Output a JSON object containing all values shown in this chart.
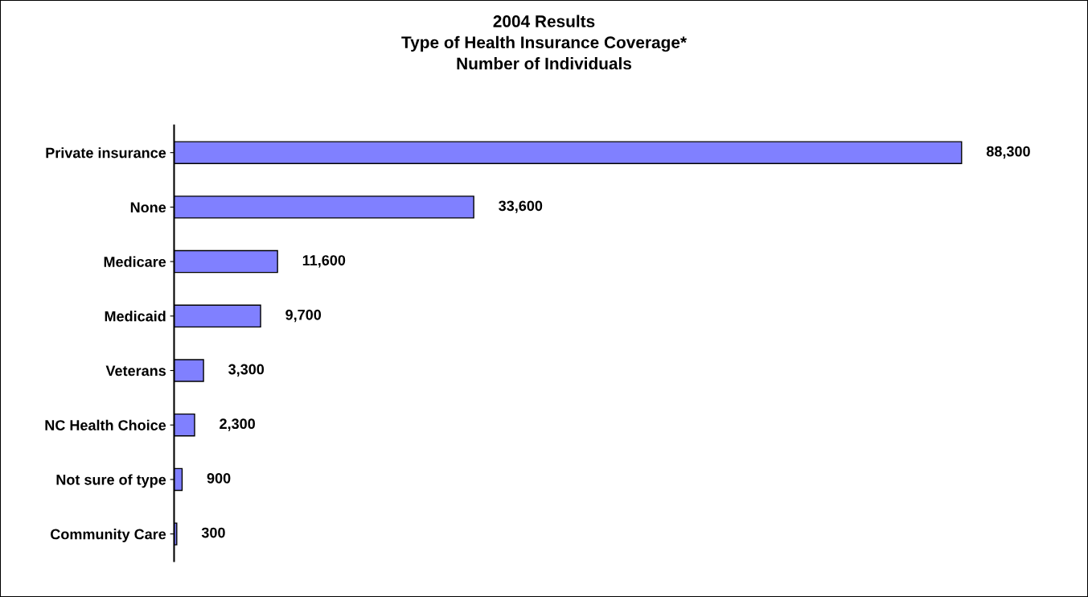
{
  "chart_data": {
    "type": "bar",
    "orientation": "horizontal",
    "title": "2004 Results\nType of Health Insurance Coverage*\nNumber of Individuals",
    "categories": [
      "Private insurance",
      "None",
      "Medicare",
      "Medicaid",
      "Veterans",
      "NC Health Choice",
      "Not sure of type",
      "Community Care"
    ],
    "values": [
      88300,
      33600,
      11600,
      9700,
      3300,
      2300,
      900,
      300
    ],
    "color": "#8080ff",
    "value_labels": [
      "88,300",
      "33,600",
      "11,600",
      "9,700",
      "3,300",
      "2,300",
      "900",
      "300"
    ],
    "grid": false
  }
}
